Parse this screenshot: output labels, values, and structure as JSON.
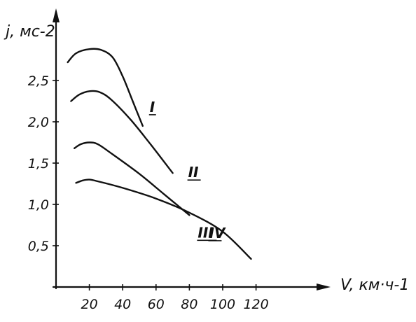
{
  "chart_data": {
    "type": "line",
    "xlabel": "V, км·ч-1",
    "ylabel": "j, мс-2",
    "x_ticks": [
      "20",
      "40",
      "60",
      "80",
      "100",
      "120"
    ],
    "y_ticks": [
      "0,5",
      "1,0",
      "1,5",
      "2,0",
      "2,5"
    ],
    "xlim": [
      0,
      130
    ],
    "ylim": [
      0,
      3.0
    ],
    "grid": false,
    "series": [
      {
        "name": "I",
        "x": [
          7,
          12,
          20,
          27,
          34,
          40,
          46,
          52
        ],
        "y": [
          2.72,
          2.83,
          2.88,
          2.87,
          2.78,
          2.55,
          2.25,
          1.95
        ]
      },
      {
        "name": "II",
        "x": [
          9,
          14,
          20,
          26,
          33,
          45,
          57,
          70
        ],
        "y": [
          2.25,
          2.33,
          2.37,
          2.36,
          2.27,
          2.02,
          1.72,
          1.38
        ]
      },
      {
        "name": "III",
        "x": [
          11,
          15,
          20,
          25,
          33,
          50,
          65,
          80
        ],
        "y": [
          1.68,
          1.73,
          1.75,
          1.73,
          1.62,
          1.37,
          1.12,
          0.87
        ]
      },
      {
        "name": "IV",
        "x": [
          12,
          16,
          20,
          25,
          40,
          60,
          80,
          100,
          117
        ],
        "y": [
          1.26,
          1.29,
          1.3,
          1.28,
          1.2,
          1.07,
          0.9,
          0.67,
          0.34
        ]
      }
    ]
  }
}
